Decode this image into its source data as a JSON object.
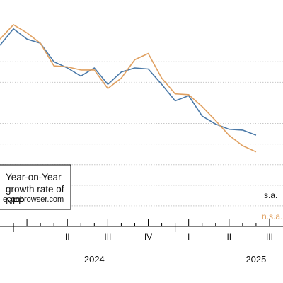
{
  "chart_data": {
    "type": "line",
    "title": "",
    "xlabel": "",
    "ylabel": "",
    "annotation": {
      "lines": [
        "Year-on-Year",
        "growth rate of",
        "NFP"
      ],
      "source": "econbrowser.com"
    },
    "x": [
      "2023-12",
      "2024-01",
      "2024-02",
      "2024-03",
      "2024-04",
      "2024-05",
      "2024-06",
      "2024-07",
      "2024-08",
      "2024-09",
      "2024-10",
      "2024-11",
      "2024-12",
      "2025-01",
      "2025-02",
      "2025-03",
      "2025-04",
      "2025-05",
      "2025-06",
      "2025-07",
      "2025-08"
    ],
    "x_range": [
      "2023-12",
      "2025-09"
    ],
    "quarter_ticks": [
      {
        "label": "II",
        "date": "2024-05"
      },
      {
        "label": "III",
        "date": "2024-08"
      },
      {
        "label": "IV",
        "date": "2024-11"
      },
      {
        "label": "I",
        "date": "2025-02"
      },
      {
        "label": "II",
        "date": "2025-05"
      },
      {
        "label": "III",
        "date": "2025-08"
      }
    ],
    "year_labels": [
      {
        "label": "2024",
        "date": "2024-07"
      },
      {
        "label": "2025",
        "date": "2025-07"
      }
    ],
    "ylim": [
      0.9,
      2.0
    ],
    "grid": true,
    "series": [
      {
        "name": "s.a.",
        "color": "#4a79a8",
        "values": [
          1.78,
          1.86,
          1.81,
          1.79,
          1.7,
          1.67,
          1.63,
          1.67,
          1.59,
          1.65,
          1.67,
          1.665,
          1.59,
          1.51,
          1.535,
          1.436,
          1.397,
          1.372,
          1.368,
          1.343,
          null
        ]
      },
      {
        "name": "n.s.a.",
        "color": "#e0a060",
        "values": [
          1.81,
          1.88,
          1.84,
          1.79,
          1.68,
          1.675,
          1.66,
          1.66,
          1.57,
          1.62,
          1.71,
          1.74,
          1.62,
          1.544,
          1.54,
          1.482,
          1.414,
          1.342,
          1.292,
          1.262,
          null
        ]
      }
    ],
    "series_labels": [
      "s.a.",
      "n.s.a."
    ]
  }
}
